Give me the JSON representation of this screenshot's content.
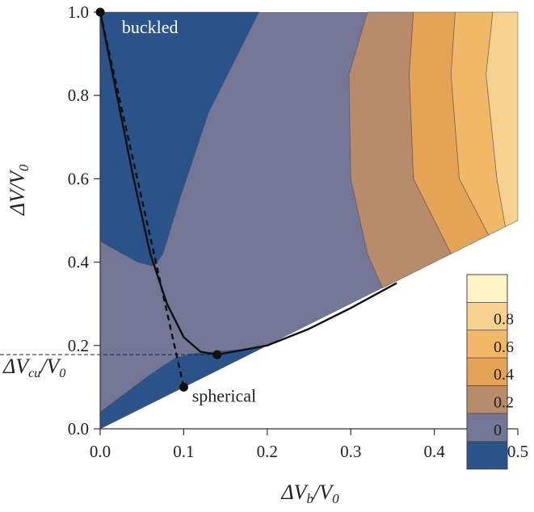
{
  "chart_data": {
    "type": "heatmap",
    "title": "",
    "xlabel_main": "ΔV",
    "xlabel_sub": "b",
    "xlabel_tail": "/V",
    "xlabel_tail_sub": "0",
    "ylabel_main": "ΔV",
    "ylabel_tail": "/V",
    "ylabel_tail_sub": "0",
    "xlim": [
      0,
      0.5
    ],
    "ylim": [
      0,
      1.0
    ],
    "x_ticks": [
      "0.0",
      "0.1",
      "0.2",
      "0.3",
      "0.4",
      "0.5"
    ],
    "y_ticks": [
      "0.0",
      "0.2",
      "0.4",
      "0.6",
      "0.8",
      "1.0"
    ],
    "x_tick_values": [
      0,
      0.1,
      0.2,
      0.3,
      0.4,
      0.5
    ],
    "y_tick_values": [
      0,
      0.2,
      0.4,
      0.6,
      0.8,
      1.0
    ],
    "domain_boundary": "ΔV ≥ ΔVb (region below line ΔV = ΔVb is empty)",
    "legend": {
      "placement": "bottom-right",
      "levels": [
        {
          "label": "",
          "color": "#fdf3c7"
        },
        {
          "label": "0.8",
          "color": "#f6d18e"
        },
        {
          "label": "0.6",
          "color": "#f0b867"
        },
        {
          "label": "0.4",
          "color": "#e4a355"
        },
        {
          "label": "0.2",
          "color": "#b88b6a"
        },
        {
          "label": "0",
          "color": "#737694"
        },
        {
          "label": "",
          "color": "#2a5389"
        }
      ]
    },
    "regions": [
      {
        "name": "negative-upper",
        "color": "#2a5389",
        "points": [
          [
            0.0,
            1.0
          ],
          [
            0.19,
            1.0
          ],
          [
            0.13,
            0.76
          ],
          [
            0.095,
            0.55
          ],
          [
            0.075,
            0.42
          ],
          [
            0.065,
            0.39
          ],
          [
            0.045,
            0.4
          ],
          [
            0.0,
            0.45
          ]
        ]
      },
      {
        "name": "negative-lower",
        "color": "#2a5389",
        "points": [
          [
            0.0,
            0.0
          ],
          [
            0.195,
            0.195
          ],
          [
            0.11,
            0.18
          ],
          [
            0.09,
            0.17
          ],
          [
            0.06,
            0.13
          ],
          [
            0.0,
            0.04
          ]
        ]
      },
      {
        "name": "level-0.2",
        "color": "#b88b6a",
        "points": [
          [
            0.32,
            1.0
          ],
          [
            0.375,
            1.0
          ],
          [
            0.37,
            0.85
          ],
          [
            0.375,
            0.6
          ],
          [
            0.42,
            0.42
          ],
          [
            0.338,
            0.338
          ],
          [
            0.32,
            0.42
          ],
          [
            0.3,
            0.6
          ],
          [
            0.298,
            0.85
          ]
        ]
      },
      {
        "name": "level-0.4",
        "color": "#e4a355",
        "points": [
          [
            0.375,
            1.0
          ],
          [
            0.425,
            1.0
          ],
          [
            0.42,
            0.85
          ],
          [
            0.43,
            0.6
          ],
          [
            0.465,
            0.465
          ],
          [
            0.42,
            0.42
          ],
          [
            0.375,
            0.6
          ],
          [
            0.37,
            0.85
          ]
        ]
      },
      {
        "name": "level-0.6",
        "color": "#f0b867",
        "points": [
          [
            0.425,
            1.0
          ],
          [
            0.47,
            1.0
          ],
          [
            0.462,
            0.85
          ],
          [
            0.475,
            0.6
          ],
          [
            0.485,
            0.485
          ],
          [
            0.465,
            0.465
          ],
          [
            0.43,
            0.6
          ],
          [
            0.42,
            0.85
          ]
        ]
      },
      {
        "name": "level-0.8",
        "color": "#f6d18e",
        "points": [
          [
            0.47,
            1.0
          ],
          [
            0.5,
            1.0
          ],
          [
            0.5,
            0.5
          ],
          [
            0.485,
            0.485
          ],
          [
            0.475,
            0.6
          ],
          [
            0.462,
            0.85
          ]
        ]
      }
    ],
    "series": [
      {
        "style": "solid",
        "points": [
          [
            0.0,
            1.0
          ],
          [
            0.02,
            0.8
          ],
          [
            0.04,
            0.6
          ],
          [
            0.06,
            0.42
          ],
          [
            0.08,
            0.3
          ],
          [
            0.1,
            0.22
          ],
          [
            0.12,
            0.185
          ],
          [
            0.14,
            0.178
          ],
          [
            0.2,
            0.2
          ],
          [
            0.25,
            0.24
          ],
          [
            0.3,
            0.29
          ],
          [
            0.355,
            0.35
          ]
        ]
      },
      {
        "style": "dashed",
        "points": [
          [
            0.0,
            1.0
          ],
          [
            0.1,
            0.1
          ]
        ]
      }
    ],
    "markers": [
      [
        0.0,
        1.0
      ],
      [
        0.14,
        0.178
      ],
      [
        0.1,
        0.1
      ]
    ],
    "reference_line_y": 0.178,
    "annotations": [
      {
        "text": "buckled",
        "x": 0.026,
        "y": 0.95,
        "color": "#ffffff"
      },
      {
        "text": "spherical",
        "x": 0.11,
        "y": 0.065,
        "color": "#222222"
      }
    ],
    "ref_label_main": "ΔV",
    "ref_label_sub": "cu",
    "ref_label_tail": "/V",
    "ref_label_tail_sub": "0"
  }
}
